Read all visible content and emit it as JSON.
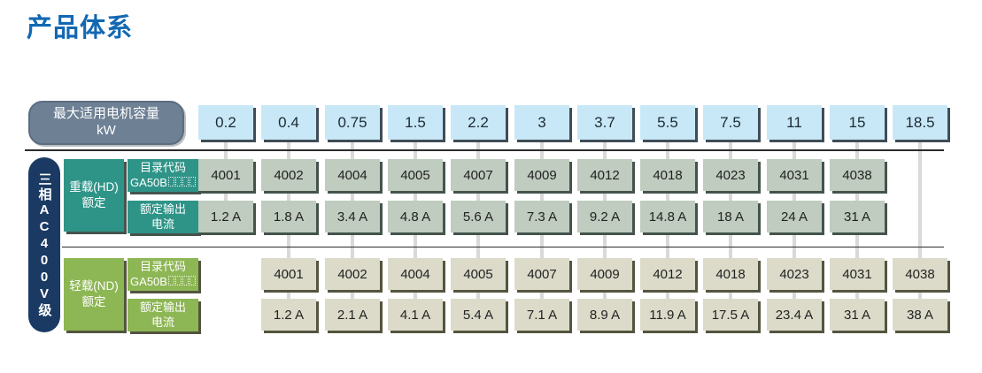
{
  "page": {
    "title": "产品体系"
  },
  "colors": {
    "title_color": "#1268b2",
    "header_pill": "#6e8094",
    "header_pill_border": "#5c6d80",
    "navy": "#1a3a63",
    "kw_cell": "#c8e8f7",
    "kw_shadow": "#3f4d57",
    "hd_label": "#2f9488",
    "hd_cell": "#bfccbf",
    "hd_shadow": "#44544c",
    "nd_label": "#8db654",
    "nd_cell": "#dcdbca",
    "nd_shadow": "#53553f",
    "line": "#2b2b2b",
    "connector": "#d9d9d9"
  },
  "header": {
    "label_line1": "最大适用电机容量",
    "label_line2": "kW"
  },
  "axis_label": "三相AC400V级",
  "columns_kw": [
    "0.2",
    "0.4",
    "0.75",
    "1.5",
    "2.2",
    "3",
    "3.7",
    "5.5",
    "7.5",
    "11",
    "15",
    "18.5"
  ],
  "sections": [
    {
      "id": "hd",
      "group_line1": "重载(HD)",
      "group_line2": "额定",
      "row1_label_line1": "目录代码",
      "row1_label_prefix": "GA50B",
      "placeholder_boxes": 4,
      "row2_label_line1": "额定输出",
      "row2_label_line2": "电流",
      "codes": [
        "4001",
        "4002",
        "4004",
        "4005",
        "4007",
        "4009",
        "4012",
        "4018",
        "4023",
        "4031",
        "4038",
        null
      ],
      "currents": [
        "1.2 A",
        "1.8 A",
        "3.4 A",
        "4.8 A",
        "5.6 A",
        "7.3 A",
        "9.2 A",
        "14.8 A",
        "18 A",
        "24 A",
        "31 A",
        null
      ]
    },
    {
      "id": "nd",
      "group_line1": "轻载(ND)",
      "group_line2": "额定",
      "row1_label_line1": "目录代码",
      "row1_label_prefix": "GA50B",
      "placeholder_boxes": 4,
      "row2_label_line1": "额定输出",
      "row2_label_line2": "电流",
      "codes": [
        null,
        "4001",
        "4002",
        "4004",
        "4005",
        "4007",
        "4009",
        "4012",
        "4018",
        "4023",
        "4031",
        "4038"
      ],
      "currents": [
        null,
        "1.2 A",
        "2.1 A",
        "4.1 A",
        "5.4 A",
        "7.1 A",
        "8.9 A",
        "11.9 A",
        "17.5 A",
        "23.4 A",
        "31 A",
        "38 A"
      ]
    }
  ]
}
